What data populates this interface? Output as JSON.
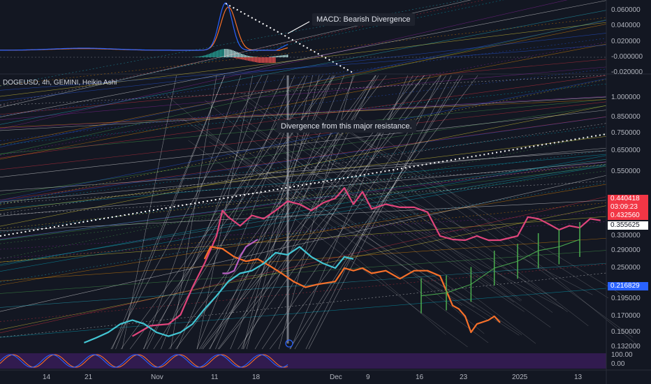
{
  "chart_data": {
    "type": "line",
    "symbol_label": "DOGEUSD, 4h, GEMINI, Heikin Ashi",
    "annotations": {
      "macd_note": "MACD: Bearish Divergence",
      "resistance_note": "Divergence from this major resistance."
    },
    "price_axis": {
      "scale": "log",
      "ticks": [
        1.0,
        0.85,
        0.75,
        0.65,
        0.55,
        0.33,
        0.29,
        0.25,
        0.195,
        0.17,
        0.15,
        0.132
      ],
      "tick_labels": [
        "1.000000",
        "0.850000",
        "0.750000",
        "0.650000",
        "0.550000",
        "0.330000",
        "0.290000",
        "0.250000",
        "0.195000",
        "0.170000",
        "0.150000",
        "0.132000"
      ]
    },
    "price_tags": [
      {
        "label": "0.440418",
        "value": 0.440418,
        "color": "#f23645"
      },
      {
        "label": "03:09:23",
        "value": 0.4355,
        "color": "#f23645"
      },
      {
        "label": "0.432560",
        "value": 0.43256,
        "color": "#f23645"
      },
      {
        "label": "0.355625",
        "value": 0.355625,
        "color": "#ffffff"
      },
      {
        "label": "0.216829",
        "value": 0.216829,
        "color": "#2962ff"
      }
    ],
    "macd_axis": {
      "ticks": [
        0.06,
        0.04,
        0.02,
        0.0,
        -0.02
      ],
      "tick_labels": [
        "0.060000",
        "0.040000",
        "0.020000",
        "-0.000000",
        "-0.020000"
      ]
    },
    "stoch_axis": {
      "tick_labels": [
        "100.00",
        "0.00"
      ]
    },
    "x_axis": {
      "labels": [
        {
          "label": "14",
          "date": "2024-10-14"
        },
        {
          "label": "21",
          "date": "2024-10-21"
        },
        {
          "label": "Nov",
          "date": "2024-11-01"
        },
        {
          "label": "11",
          "date": "2024-11-11"
        },
        {
          "label": "18",
          "date": "2024-11-18"
        },
        {
          "label": "Dec",
          "date": "2024-12-01"
        },
        {
          "label": "9",
          "date": "2024-12-09"
        },
        {
          "label": "16",
          "date": "2024-12-16"
        },
        {
          "label": "23",
          "date": "2024-12-23"
        },
        {
          "label": "2025",
          "date": "2025-01-01"
        },
        {
          "label": "13",
          "date": "2025-01-13"
        }
      ]
    },
    "series": [
      {
        "color": "#e0457b",
        "points": [
          [
            "2024-10-28",
            0.145
          ],
          [
            "2024-10-31",
            0.158
          ],
          [
            "2024-11-03",
            0.16
          ],
          [
            "2024-11-05",
            0.172
          ],
          [
            "2024-11-07",
            0.215
          ],
          [
            "2024-11-09",
            0.26
          ],
          [
            "2024-11-11",
            0.33
          ],
          [
            "2024-11-12",
            0.4
          ],
          [
            "2024-11-13",
            0.38
          ],
          [
            "2024-11-15",
            0.355
          ],
          [
            "2024-11-17",
            0.385
          ],
          [
            "2024-11-19",
            0.375
          ],
          [
            "2024-11-21",
            0.4
          ],
          [
            "2024-11-23",
            0.43
          ],
          [
            "2024-11-25",
            0.42
          ],
          [
            "2024-11-27",
            0.4
          ],
          [
            "2024-11-29",
            0.425
          ],
          [
            "2024-12-01",
            0.44
          ],
          [
            "2024-12-03",
            0.48
          ],
          [
            "2024-12-05",
            0.42
          ],
          [
            "2024-12-07",
            0.465
          ],
          [
            "2024-12-09",
            0.405
          ],
          [
            "2024-12-11",
            0.42
          ],
          [
            "2024-12-13",
            0.41
          ],
          [
            "2024-12-15",
            0.41
          ],
          [
            "2024-12-17",
            0.395
          ],
          [
            "2024-12-19",
            0.33
          ],
          [
            "2024-12-21",
            0.32
          ],
          [
            "2024-12-23",
            0.318
          ],
          [
            "2024-12-25",
            0.33
          ],
          [
            "2024-12-27",
            0.318
          ],
          [
            "2024-12-29",
            0.318
          ],
          [
            "2025-01-01",
            0.33
          ],
          [
            "2025-01-03",
            0.38
          ],
          [
            "2025-01-05",
            0.375
          ],
          [
            "2025-01-07",
            0.36
          ],
          [
            "2025-01-09",
            0.345
          ],
          [
            "2025-01-11",
            0.355
          ],
          [
            "2025-01-13",
            0.35
          ],
          [
            "2025-01-15",
            0.375
          ],
          [
            "2025-01-17",
            0.37
          ]
        ]
      },
      {
        "color": "#f7702a",
        "points": [
          [
            "2024-11-09",
            0.27
          ],
          [
            "2024-11-10",
            0.3
          ],
          [
            "2024-11-12",
            0.295
          ],
          [
            "2024-11-14",
            0.275
          ],
          [
            "2024-11-16",
            0.265
          ],
          [
            "2024-11-18",
            0.27
          ],
          [
            "2024-11-20",
            0.255
          ],
          [
            "2024-11-22",
            0.24
          ],
          [
            "2024-11-24",
            0.225
          ],
          [
            "2024-11-26",
            0.215
          ],
          [
            "2024-11-28",
            0.22
          ],
          [
            "2024-12-01",
            0.225
          ],
          [
            "2024-12-03",
            0.25
          ],
          [
            "2024-12-05",
            0.245
          ],
          [
            "2024-12-07",
            0.25
          ],
          [
            "2024-12-09",
            0.24
          ],
          [
            "2024-12-11",
            0.245
          ],
          [
            "2024-12-13",
            0.23
          ],
          [
            "2024-12-15",
            0.245
          ],
          [
            "2024-12-17",
            0.245
          ],
          [
            "2024-12-19",
            0.235
          ],
          [
            "2024-12-21",
            0.185
          ],
          [
            "2024-12-22",
            0.18
          ],
          [
            "2024-12-23",
            0.17
          ],
          [
            "2024-12-24",
            0.15
          ],
          [
            "2024-12-25",
            0.16
          ],
          [
            "2024-12-27",
            0.165
          ],
          [
            "2024-12-28",
            0.17
          ],
          [
            "2024-12-29",
            0.162
          ]
        ]
      },
      {
        "color": "#43c6d4",
        "points": [
          [
            "2024-10-20",
            0.137
          ],
          [
            "2024-10-22",
            0.143
          ],
          [
            "2024-10-24",
            0.15
          ],
          [
            "2024-10-26",
            0.16
          ],
          [
            "2024-10-28",
            0.165
          ],
          [
            "2024-10-30",
            0.16
          ],
          [
            "2024-11-01",
            0.15
          ],
          [
            "2024-11-03",
            0.145
          ],
          [
            "2024-11-05",
            0.15
          ],
          [
            "2024-11-07",
            0.16
          ],
          [
            "2024-11-09",
            0.18
          ],
          [
            "2024-11-11",
            0.2
          ],
          [
            "2024-11-13",
            0.225
          ],
          [
            "2024-11-15",
            0.24
          ],
          [
            "2024-11-17",
            0.245
          ],
          [
            "2024-11-19",
            0.26
          ],
          [
            "2024-11-21",
            0.285
          ],
          [
            "2024-11-23",
            0.28
          ],
          [
            "2024-11-25",
            0.3
          ],
          [
            "2024-11-27",
            0.275
          ],
          [
            "2024-11-29",
            0.26
          ],
          [
            "2024-12-01",
            0.25
          ],
          [
            "2024-12-03",
            0.275
          ],
          [
            "2024-12-05",
            0.27
          ]
        ]
      },
      {
        "color": "#b65fc0",
        "points": [
          [
            "2024-11-12",
            0.24
          ],
          [
            "2024-11-13",
            0.24
          ],
          [
            "2024-11-14",
            0.245
          ],
          [
            "2024-11-15",
            0.275
          ],
          [
            "2024-11-16",
            0.3
          ],
          [
            "2024-11-17",
            0.31
          ],
          [
            "2024-11-18",
            0.32
          ]
        ]
      },
      {
        "color": "#4caf50",
        "points": [
          [
            "2024-12-16",
            0.2
          ],
          [
            "2024-12-20",
            0.205
          ],
          [
            "2024-12-24",
            0.22
          ],
          [
            "2024-12-28",
            0.25
          ],
          [
            "2025-01-01",
            0.265
          ],
          [
            "2025-01-05",
            0.29
          ],
          [
            "2025-01-09",
            0.3
          ],
          [
            "2025-01-13",
            0.32
          ]
        ]
      }
    ]
  }
}
